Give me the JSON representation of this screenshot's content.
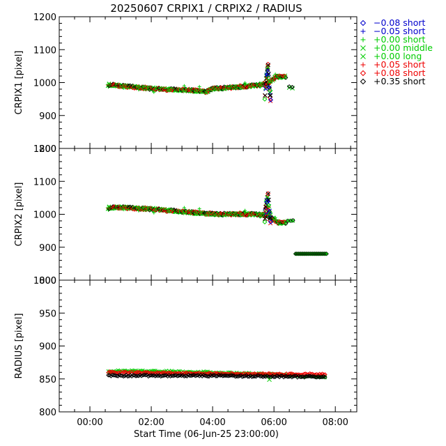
{
  "title": "20250607 CRPIX1 / CRPIX2 / RADIUS",
  "xlabel": "Start Time (06-Jun-25 23:00:00)",
  "x_ticks": [
    "00:00",
    "02:00",
    "04:00",
    "06:00",
    "08:00"
  ],
  "legend": [
    {
      "symbol": "diamond",
      "label": "−0.08 short",
      "color": "#0000cc"
    },
    {
      "symbol": "plus",
      "label": "−0.05 short",
      "color": "#0000cc"
    },
    {
      "symbol": "plus",
      "label": "+0.00 short",
      "color": "#00cc00"
    },
    {
      "symbol": "cross",
      "label": "+0.00 middle",
      "color": "#00cc00"
    },
    {
      "symbol": "cross",
      "label": "+0.00 long",
      "color": "#00cc00"
    },
    {
      "symbol": "plus",
      "label": "+0.05 short",
      "color": "#ee0000"
    },
    {
      "symbol": "diamond",
      "label": "+0.08 short",
      "color": "#ee0000"
    },
    {
      "symbol": "diamond",
      "label": "+0.35 short",
      "color": "#000000"
    }
  ],
  "chart_data": [
    {
      "type": "scatter",
      "ylabel": "CRPIX1 [pixel]",
      "xlim": [
        -1.0,
        8.7
      ],
      "ylim": [
        800,
        1200
      ],
      "y_ticks": [
        "800",
        "900",
        "1000",
        "1100",
        "1200"
      ],
      "series": [
        {
          "name": "main",
          "x": [
            0.6,
            1.0,
            1.5,
            2.0,
            2.5,
            3.0,
            3.5,
            3.8,
            4.0,
            4.5,
            5.0,
            5.5,
            5.8,
            6.1,
            6.4
          ],
          "y": [
            994,
            990,
            986,
            982,
            979,
            978,
            975,
            972,
            982,
            984,
            988,
            992,
            998,
            1018,
            1018
          ]
        },
        {
          "name": "late",
          "x": [
            6.5,
            6.6
          ],
          "y": [
            985,
            983
          ]
        },
        {
          "name": "spike",
          "x": [
            5.7,
            5.75,
            5.8,
            5.85,
            5.9
          ],
          "y": [
            958,
            1010,
            1060,
            975,
            950
          ]
        }
      ]
    },
    {
      "type": "scatter",
      "ylabel": "CRPIX2 [pixel]",
      "xlim": [
        -1.0,
        8.7
      ],
      "ylim": [
        800,
        1200
      ],
      "y_ticks": [
        "800",
        "900",
        "1000",
        "1100",
        "1200"
      ],
      "series": [
        {
          "name": "main",
          "x": [
            0.6,
            1.0,
            1.5,
            2.0,
            2.5,
            3.0,
            3.5,
            4.0,
            4.5,
            5.0,
            5.5,
            5.8,
            6.1,
            6.4
          ],
          "y": [
            1020,
            1021,
            1018,
            1016,
            1012,
            1008,
            1004,
            1001,
            1000,
            1001,
            999,
            997,
            975,
            975
          ]
        },
        {
          "name": "late",
          "x": [
            6.5,
            6.6,
            6.7,
            7.0,
            7.3,
            7.7
          ],
          "y": [
            982,
            982,
            880,
            880,
            880,
            880
          ]
        },
        {
          "name": "spike",
          "x": [
            5.7,
            5.75,
            5.8,
            5.85,
            5.9
          ],
          "y": [
            985,
            1030,
            1065,
            1000,
            980
          ]
        }
      ]
    },
    {
      "type": "scatter",
      "ylabel": "RADIUS [pixel]",
      "xlim": [
        -1.0,
        8.7
      ],
      "ylim": [
        800,
        1000
      ],
      "y_ticks": [
        "800",
        "850",
        "900",
        "950",
        "1000"
      ],
      "series": [
        {
          "name": "green",
          "x": [
            0.6,
            2.0,
            4.0,
            6.0,
            7.7
          ],
          "y": [
            862,
            862,
            860,
            857,
            853
          ]
        },
        {
          "name": "red",
          "x": [
            0.6,
            2.0,
            4.0,
            6.0,
            7.7
          ],
          "y": [
            860,
            859,
            858,
            857,
            857
          ]
        },
        {
          "name": "black",
          "x": [
            0.6,
            2.0,
            4.0,
            6.0,
            7.7
          ],
          "y": [
            855,
            855,
            855,
            854,
            853
          ]
        }
      ]
    }
  ]
}
